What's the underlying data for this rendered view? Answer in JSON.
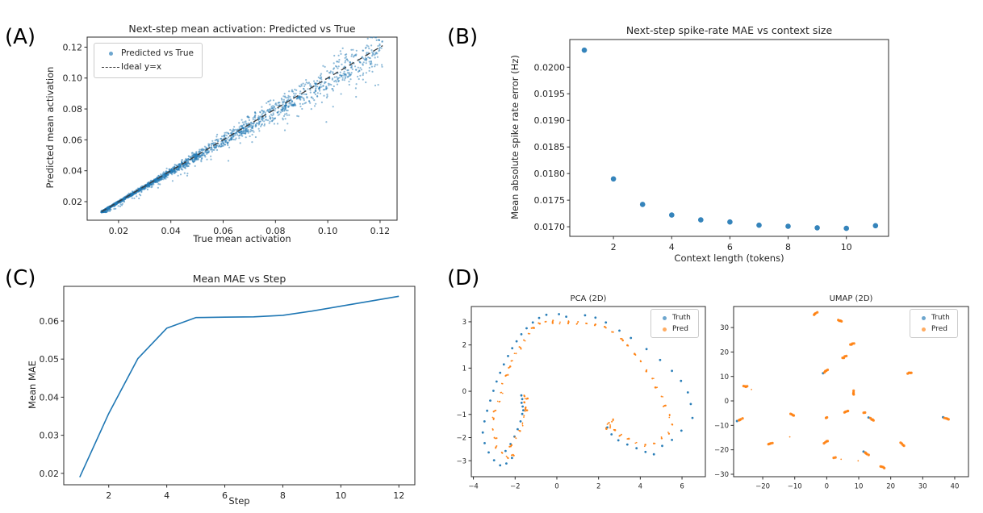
{
  "panel_labels": {
    "a": "(A)",
    "b": "(B)",
    "c": "(C)",
    "d": "(D)"
  },
  "colors": {
    "truth_blue": "#1f77b4",
    "pred_orange": "#ff7f0e",
    "ideal_line": "#3a3a3a",
    "axis": "#2b2b2b",
    "text": "#262626"
  },
  "chart_data": [
    {
      "id": "a",
      "type": "scatter",
      "title": "Next-step mean activation: Predicted vs True",
      "xlabel": "True mean activation",
      "ylabel": "Predicted mean activation",
      "xlim": [
        0.008,
        0.1265
      ],
      "ylim": [
        0.008,
        0.1265
      ],
      "xticks": {
        "vals": [
          0.02,
          0.04,
          0.06,
          0.08,
          0.1,
          0.12
        ],
        "labels": [
          "0.02",
          "0.04",
          "0.06",
          "0.08",
          "0.10",
          "0.12"
        ]
      },
      "yticks": {
        "vals": [
          0.02,
          0.04,
          0.06,
          0.08,
          0.1,
          0.12
        ],
        "labels": [
          "0.02",
          "0.04",
          "0.06",
          "0.08",
          "0.10",
          "0.12"
        ]
      },
      "legend": [
        {
          "label": "Predicted vs True",
          "marker": "dot",
          "color": "#1f77b4"
        },
        {
          "label": "Ideal y=x",
          "marker": "dash",
          "color": "#3a3a3a"
        }
      ],
      "ideal_line": {
        "x": [
          0.0135,
          0.121
        ],
        "y": [
          0.0135,
          0.121
        ]
      },
      "marker": {
        "color": "#1f77b4",
        "r": 1.1,
        "opacity": 0.5
      },
      "points_gen": {
        "seed": 7,
        "n": 3000,
        "x_min": 0.0135,
        "x_max": 0.121,
        "skew": 3.0,
        "noise_sd": 0.05,
        "down_bias": 0.02,
        "outlier_p": 0.06,
        "outlier_mag": 0.16,
        "columns": {
          "count": 18,
          "x_from": 0.062,
          "x_to": 0.121,
          "max_pts": 6,
          "drop": 0.05,
          "spread": 0.016
        }
      },
      "note": "Dense cloud of ~3000 points hugging the ideal y=x diagonal from 0.014 to 0.121, spread growing with activation, vertical streak clusters above 0.07"
    },
    {
      "id": "b",
      "type": "scatter",
      "title": "Next-step spike-rate MAE vs context size",
      "xlabel": "Context length (tokens)",
      "ylabel": "Mean absolute spike rate error (Hz)",
      "x": [
        1,
        2,
        3,
        4,
        5,
        6,
        7,
        8,
        9,
        10,
        11
      ],
      "y": [
        0.02032,
        0.0179,
        0.01742,
        0.01722,
        0.01713,
        0.01709,
        0.01703,
        0.01701,
        0.01698,
        0.01697,
        0.01702
      ],
      "xlim": [
        0.5,
        11.45
      ],
      "ylim": [
        0.01682,
        0.02052
      ],
      "xticks": {
        "vals": [
          2,
          4,
          6,
          8,
          10
        ],
        "labels": [
          "2",
          "4",
          "6",
          "8",
          "10"
        ]
      },
      "yticks": {
        "vals": [
          0.017,
          0.0175,
          0.018,
          0.0185,
          0.019,
          0.0195,
          0.02
        ],
        "labels": [
          "0.0170",
          "0.0175",
          "0.0180",
          "0.0185",
          "0.0190",
          "0.0195",
          "0.0200"
        ]
      },
      "marker": {
        "color": "#1f77b4",
        "r": 3.3,
        "opacity": 0.9
      }
    },
    {
      "id": "c",
      "type": "line",
      "title": "Mean MAE vs Step",
      "xlabel": "Step",
      "ylabel": "Mean MAE",
      "x": [
        1,
        2,
        3,
        4,
        5,
        6,
        7,
        8,
        9,
        10,
        11,
        12
      ],
      "y": [
        0.019,
        0.0357,
        0.0501,
        0.0581,
        0.0609,
        0.061,
        0.0611,
        0.0615,
        0.0626,
        0.0639,
        0.0652,
        0.0665
      ],
      "xlim": [
        0.45,
        12.55
      ],
      "ylim": [
        0.017,
        0.0691
      ],
      "xticks": {
        "vals": [
          2,
          4,
          6,
          8,
          10,
          12
        ],
        "labels": [
          "2",
          "4",
          "6",
          "8",
          "10",
          "12"
        ]
      },
      "yticks": {
        "vals": [
          0.02,
          0.03,
          0.04,
          0.05,
          0.06
        ],
        "labels": [
          "0.02",
          "0.03",
          "0.04",
          "0.05",
          "0.06"
        ]
      },
      "line": {
        "color": "#1f77b4",
        "width": 1.6
      }
    },
    {
      "id": "pca",
      "type": "scatter",
      "title": "PCA (2D)",
      "xlim": [
        -4.1,
        7.12
      ],
      "ylim": [
        -3.69,
        3.66
      ],
      "xticks": {
        "vals": [
          -4,
          -2,
          0,
          2,
          4,
          6
        ],
        "labels": [
          "−4",
          "−2",
          "0",
          "2",
          "4",
          "6"
        ]
      },
      "yticks": {
        "vals": [
          -3,
          -2,
          -1,
          0,
          1,
          2,
          3
        ],
        "labels": [
          "−3",
          "−2",
          "−1",
          "0",
          "1",
          "2",
          "3"
        ]
      },
      "legend": [
        {
          "label": "Truth",
          "marker": "dot",
          "color": "#1f77b4"
        },
        {
          "label": "Pred",
          "marker": "dot",
          "color": "#ff7f0e"
        }
      ],
      "jitter_seed": 11,
      "truth": [
        [
          -0.5,
          3.3
        ],
        [
          0.1,
          3.33
        ],
        [
          0.45,
          3.22
        ],
        [
          1.35,
          3.28
        ],
        [
          1.85,
          3.18
        ],
        [
          2.35,
          2.97
        ],
        [
          3.0,
          2.62
        ],
        [
          3.55,
          2.3
        ],
        [
          4.3,
          1.82
        ],
        [
          4.95,
          1.35
        ],
        [
          5.52,
          0.88
        ],
        [
          5.95,
          0.45
        ],
        [
          6.28,
          -0.05
        ],
        [
          6.42,
          -0.55
        ],
        [
          6.5,
          -1.15
        ],
        [
          5.97,
          -1.7
        ],
        [
          5.52,
          -2.1
        ],
        [
          5.05,
          -2.36
        ],
        [
          4.65,
          -2.72
        ],
        [
          4.25,
          -2.62
        ],
        [
          3.82,
          -2.46
        ],
        [
          3.38,
          -2.3
        ],
        [
          2.95,
          -2.12
        ],
        [
          2.62,
          -1.86
        ],
        [
          2.42,
          -1.56
        ],
        [
          -0.85,
          3.17
        ],
        [
          -1.15,
          2.97
        ],
        [
          -1.45,
          2.72
        ],
        [
          -1.7,
          2.46
        ],
        [
          -1.93,
          2.16
        ],
        [
          -2.14,
          1.86
        ],
        [
          -2.34,
          1.52
        ],
        [
          -2.54,
          1.16
        ],
        [
          -2.72,
          0.8
        ],
        [
          -2.89,
          0.42
        ],
        [
          -3.04,
          0.02
        ],
        [
          -3.19,
          -0.4
        ],
        [
          -3.34,
          -0.84
        ],
        [
          -3.47,
          -1.3
        ],
        [
          -3.55,
          -1.78
        ],
        [
          -3.46,
          -2.24
        ],
        [
          -3.27,
          -2.64
        ],
        [
          -3.01,
          -2.98
        ],
        [
          -2.72,
          -3.2
        ],
        [
          -2.42,
          -3.12
        ],
        [
          -2.15,
          -2.88
        ],
        [
          -1.7,
          -0.18
        ],
        [
          -1.66,
          -0.34
        ],
        [
          -1.69,
          -0.5
        ],
        [
          -1.64,
          -0.66
        ],
        [
          -1.61,
          -0.82
        ],
        [
          -1.66,
          -0.98
        ],
        [
          -1.74,
          -1.3
        ],
        [
          -1.88,
          -1.64
        ],
        [
          -2.03,
          -1.96
        ],
        [
          -2.22,
          -2.28
        ],
        [
          -2.46,
          -2.58
        ]
      ],
      "pred": [
        [
          -0.82,
          2.92
        ],
        [
          -0.52,
          3.02
        ],
        [
          -0.18,
          3.05
        ],
        [
          0.15,
          2.98
        ],
        [
          0.55,
          2.93
        ],
        [
          0.95,
          2.9
        ],
        [
          1.4,
          2.93
        ],
        [
          1.85,
          2.88
        ],
        [
          2.3,
          2.78
        ],
        [
          2.7,
          2.55
        ],
        [
          3.08,
          2.28
        ],
        [
          3.42,
          1.96
        ],
        [
          3.74,
          1.62
        ],
        [
          4.04,
          1.28
        ],
        [
          4.32,
          0.92
        ],
        [
          4.58,
          0.56
        ],
        [
          4.82,
          0.18
        ],
        [
          5.03,
          -0.22
        ],
        [
          5.22,
          -0.62
        ],
        [
          5.4,
          -1.02
        ],
        [
          5.52,
          -1.42
        ],
        [
          5.35,
          -1.78
        ],
        [
          5.02,
          -2.04
        ],
        [
          4.65,
          -2.24
        ],
        [
          4.22,
          -2.36
        ],
        [
          3.82,
          -2.22
        ],
        [
          3.45,
          -2.06
        ],
        [
          3.1,
          -1.88
        ],
        [
          2.8,
          -1.68
        ],
        [
          2.55,
          -1.47
        ],
        [
          2.38,
          -1.62
        ],
        [
          -1.1,
          2.72
        ],
        [
          -1.36,
          2.48
        ],
        [
          -1.58,
          2.22
        ],
        [
          -1.78,
          1.93
        ],
        [
          -1.97,
          1.63
        ],
        [
          -2.14,
          1.32
        ],
        [
          -2.3,
          1.0
        ],
        [
          -2.45,
          0.66
        ],
        [
          -2.59,
          0.31
        ],
        [
          -2.71,
          -0.05
        ],
        [
          -2.83,
          -0.43
        ],
        [
          -2.94,
          -0.82
        ],
        [
          -3.03,
          -1.22
        ],
        [
          -3.09,
          -1.62
        ],
        [
          -3.01,
          -2.02
        ],
        [
          -2.87,
          -2.38
        ],
        [
          -2.63,
          -2.68
        ],
        [
          -2.33,
          -2.9
        ],
        [
          -2.06,
          -2.76
        ],
        [
          -1.56,
          -0.16
        ],
        [
          -1.51,
          -0.32
        ],
        [
          -1.53,
          -0.5
        ],
        [
          -1.49,
          -0.68
        ],
        [
          -1.51,
          -0.86
        ],
        [
          -1.57,
          -1.06
        ],
        [
          -1.66,
          -1.38
        ],
        [
          -1.8,
          -1.7
        ],
        [
          -1.96,
          -2.02
        ],
        [
          -2.16,
          -2.34
        ],
        [
          2.5,
          -1.35
        ],
        [
          2.7,
          -1.22
        ]
      ]
    },
    {
      "id": "umap",
      "type": "scatter",
      "title": "UMAP (2D)",
      "xlim": [
        -29.1,
        44.3
      ],
      "ylim": [
        -31,
        38.6
      ],
      "xticks": {
        "vals": [
          -20,
          -10,
          0,
          10,
          20,
          30,
          40
        ],
        "labels": [
          "−20",
          "−10",
          "0",
          "10",
          "20",
          "30",
          "40"
        ]
      },
      "yticks": {
        "vals": [
          -30,
          -20,
          -10,
          0,
          10,
          20,
          30
        ],
        "labels": [
          "−30",
          "−20",
          "−10",
          "0",
          "10",
          "20",
          "30"
        ]
      },
      "legend": [
        {
          "label": "Truth",
          "marker": "dot",
          "color": "#1f77b4"
        },
        {
          "label": "Pred",
          "marker": "dot",
          "color": "#ff7f0e"
        }
      ],
      "jitter_seed": 5,
      "clusters": [
        {
          "x": -4.0,
          "y": 35.3,
          "a": 35
        },
        {
          "x": 3.5,
          "y": 33.0,
          "a": -20
        },
        {
          "x": 7.3,
          "y": 23.0,
          "a": 15
        },
        {
          "x": 5.0,
          "y": 17.5,
          "a": 30
        },
        {
          "x": -0.7,
          "y": 11.8,
          "a": 40,
          "truth": true
        },
        {
          "x": 25.3,
          "y": 11.3,
          "a": 10
        },
        {
          "x": -26.0,
          "y": 5.9,
          "a": 0
        },
        {
          "x": -23.6,
          "y": 4.6,
          "a": 0,
          "n": 1
        },
        {
          "x": 8.3,
          "y": 2.5,
          "a": 80
        },
        {
          "x": -27.5,
          "y": -7.9,
          "a": 25,
          "truth": true
        },
        {
          "x": -11.3,
          "y": -5.2,
          "a": -35
        },
        {
          "x": 5.6,
          "y": -4.7,
          "a": 20
        },
        {
          "x": -0.3,
          "y": -6.9,
          "a": 0,
          "n": 2
        },
        {
          "x": 11.6,
          "y": -4.7,
          "a": 0,
          "n": 2
        },
        {
          "x": 13.6,
          "y": -7.2,
          "a": -30,
          "truth": true
        },
        {
          "x": 36.9,
          "y": -7.0,
          "a": -25,
          "truth": true
        },
        {
          "x": -18.2,
          "y": -17.6,
          "a": 10
        },
        {
          "x": -11.6,
          "y": -14.8,
          "a": 0,
          "n": 1
        },
        {
          "x": -0.8,
          "y": -17.2,
          "a": 30
        },
        {
          "x": 23.2,
          "y": -17.2,
          "a": -40
        },
        {
          "x": 12.0,
          "y": -21.2,
          "a": -35,
          "truth": true
        },
        {
          "x": 2.3,
          "y": -23.2,
          "a": 0,
          "n": 2
        },
        {
          "x": 4.4,
          "y": -23.8,
          "a": 0,
          "n": 1
        },
        {
          "x": 9.7,
          "y": -24.6,
          "a": 0,
          "n": 1
        },
        {
          "x": 16.9,
          "y": -26.7,
          "a": -30
        }
      ]
    }
  ]
}
